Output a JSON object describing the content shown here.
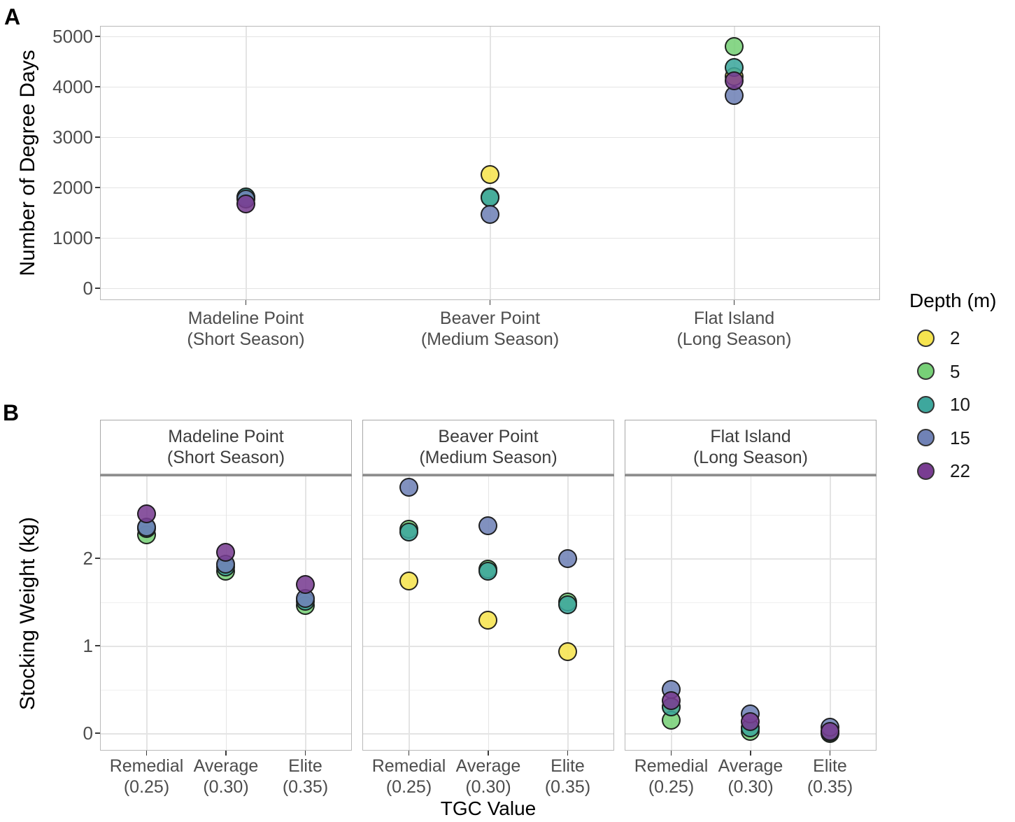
{
  "figure": {
    "panel_a_label": "A",
    "panel_b_label": "B"
  },
  "legend": {
    "title": "Depth (m)",
    "position": "right",
    "entries": [
      {
        "label": "2",
        "color": "#F6E44F"
      },
      {
        "label": "5",
        "color": "#77D077"
      },
      {
        "label": "10",
        "color": "#3EA79D"
      },
      {
        "label": "15",
        "color": "#7082B6"
      },
      {
        "label": "22",
        "color": "#793D92"
      }
    ]
  },
  "chart_data": [
    {
      "id": "A",
      "type": "scatter",
      "title": "",
      "xlabel": "",
      "ylabel": "Number of Degree Days",
      "ylim": [
        0,
        5200
      ],
      "yticks": [
        0,
        1000,
        2000,
        3000,
        4000,
        5000
      ],
      "grid": "major gridlines on, light grey, white panel background",
      "legend_position": "right",
      "categories": [
        [
          "Madeline Point",
          "(Short Season)"
        ],
        [
          "Beaver Point",
          "(Medium Season)"
        ],
        [
          "Flat Island",
          "(Long Season)"
        ]
      ],
      "series": [
        {
          "name": "2",
          "color": "#F6E44F",
          "values": [
            null,
            2255,
            4200
          ]
        },
        {
          "name": "5",
          "color": "#77D077",
          "values": [
            1790,
            1800,
            4790
          ]
        },
        {
          "name": "10",
          "color": "#3EA79D",
          "values": [
            1805,
            1785,
            4375
          ]
        },
        {
          "name": "15",
          "color": "#7082B6",
          "values": [
            1770,
            1455,
            3820
          ]
        },
        {
          "name": "22",
          "color": "#793D92",
          "values": [
            1660,
            null,
            4110
          ]
        }
      ]
    },
    {
      "id": "B",
      "type": "scatter",
      "faceted": true,
      "xlabel": "TGC Value",
      "ylabel": "Stocking Weight (kg)",
      "ylim": [
        -0.2,
        2.95
      ],
      "yticks": [
        0,
        1,
        2
      ],
      "yticks_minor": [
        0.5,
        1.5,
        2.5
      ],
      "grid": "major and minor horizontal gridlines, vertical major gridlines at categories",
      "categories": [
        [
          "Remedial",
          "(0.25)"
        ],
        [
          "Average",
          "(0.30)"
        ],
        [
          "Elite",
          "(0.35)"
        ]
      ],
      "facets": [
        {
          "strip": [
            "Madeline Point",
            "(Short Season)"
          ],
          "series": [
            {
              "name": "2",
              "color": "#F6E44F",
              "values": [
                null,
                null,
                null
              ]
            },
            {
              "name": "5",
              "color": "#77D077",
              "values": [
                2.27,
                1.85,
                1.46
              ]
            },
            {
              "name": "10",
              "color": "#3EA79D",
              "values": [
                2.34,
                1.9,
                1.51
              ]
            },
            {
              "name": "15",
              "color": "#7082B6",
              "values": [
                2.36,
                1.93,
                1.54
              ]
            },
            {
              "name": "22",
              "color": "#793D92",
              "values": [
                2.51,
                2.07,
                1.7
              ]
            }
          ]
        },
        {
          "strip": [
            "Beaver Point",
            "(Medium Season)"
          ],
          "series": [
            {
              "name": "2",
              "color": "#F6E44F",
              "values": [
                1.74,
                1.29,
                0.93
              ]
            },
            {
              "name": "5",
              "color": "#77D077",
              "values": [
                2.33,
                1.88,
                1.5
              ]
            },
            {
              "name": "10",
              "color": "#3EA79D",
              "values": [
                2.3,
                1.85,
                1.47
              ]
            },
            {
              "name": "15",
              "color": "#7082B6",
              "values": [
                2.81,
                2.37,
                2.0
              ]
            },
            {
              "name": "22",
              "color": "#793D92",
              "values": [
                null,
                null,
                null
              ]
            }
          ]
        },
        {
          "strip": [
            "Flat Island",
            "(Long Season)"
          ],
          "series": [
            {
              "name": "2",
              "color": "#F6E44F",
              "values": [
                0.3,
                0.06,
                0.01
              ]
            },
            {
              "name": "5",
              "color": "#77D077",
              "values": [
                0.15,
                0.02,
                0.0
              ]
            },
            {
              "name": "10",
              "color": "#3EA79D",
              "values": [
                0.3,
                0.06,
                0.01
              ]
            },
            {
              "name": "15",
              "color": "#7082B6",
              "values": [
                0.5,
                0.22,
                0.07
              ]
            },
            {
              "name": "22",
              "color": "#793D92",
              "values": [
                0.37,
                0.13,
                0.02
              ]
            }
          ]
        }
      ]
    }
  ]
}
